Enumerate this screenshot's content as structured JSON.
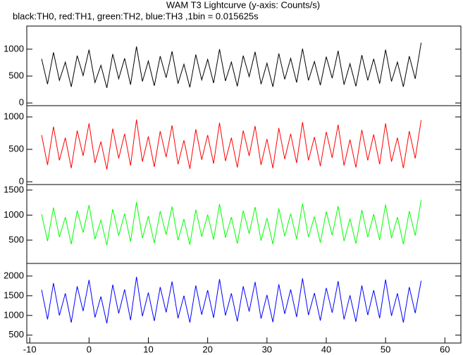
{
  "title": "WAM T3 Lightcurve (y-axis: Counts/s)",
  "subtitle": "black:TH0, red:TH1, green:TH2, blue:TH3 ,1bin = 0.015625s",
  "chart_data": [
    {
      "type": "line",
      "xlim": [
        -10.5,
        62.7
      ],
      "ylim": [
        -50,
        1430
      ],
      "yticks": [
        0,
        500,
        1000
      ],
      "x": [
        -8,
        -7,
        -6,
        -5,
        -4,
        -3,
        -2,
        -1,
        0,
        1,
        2,
        3,
        4,
        5,
        6,
        7,
        8,
        9,
        10,
        11,
        12,
        13,
        14,
        15,
        16,
        17,
        18,
        19,
        20,
        21,
        22,
        23,
        24,
        25,
        26,
        27,
        28,
        29,
        30,
        31,
        32,
        33,
        34,
        35,
        36,
        37,
        38,
        39,
        40,
        41,
        42,
        43,
        44,
        45,
        46,
        47,
        48,
        49,
        50,
        51,
        52,
        53,
        54,
        55,
        56
      ],
      "series": [
        {
          "name": "TH0",
          "color": "#000000",
          "values": [
            820,
            350,
            940,
            420,
            760,
            300,
            880,
            510,
            990,
            380,
            700,
            280,
            910,
            450,
            830,
            340,
            1050,
            400,
            780,
            320,
            870,
            470,
            960,
            360,
            720,
            290,
            900,
            430,
            810,
            370,
            1000,
            410,
            760,
            310,
            880,
            490,
            950,
            350,
            740,
            300,
            920,
            440,
            830,
            380,
            1010,
            420,
            770,
            330,
            860,
            460,
            970,
            340,
            730,
            310,
            890,
            420,
            820,
            360,
            990,
            400,
            760,
            300,
            870,
            450,
            1120
          ]
        }
      ]
    },
    {
      "type": "line",
      "xlim": [
        -10.5,
        62.7
      ],
      "ylim": [
        -43,
        1174
      ],
      "yticks": [
        0,
        500,
        1000
      ],
      "x": [
        -8,
        -7,
        -6,
        -5,
        -4,
        -3,
        -2,
        -1,
        0,
        1,
        2,
        3,
        4,
        5,
        6,
        7,
        8,
        9,
        10,
        11,
        12,
        13,
        14,
        15,
        16,
        17,
        18,
        19,
        20,
        21,
        22,
        23,
        24,
        25,
        26,
        27,
        28,
        29,
        30,
        31,
        32,
        33,
        34,
        35,
        36,
        37,
        38,
        39,
        40,
        41,
        42,
        43,
        44,
        45,
        46,
        47,
        48,
        49,
        50,
        51,
        52,
        53,
        54,
        55,
        56
      ],
      "series": [
        {
          "name": "TH1",
          "color": "#ff0000",
          "values": [
            720,
            260,
            850,
            330,
            680,
            210,
            790,
            400,
            900,
            290,
            620,
            190,
            820,
            360,
            740,
            250,
            960,
            310,
            700,
            230,
            780,
            380,
            870,
            270,
            640,
            200,
            810,
            340,
            720,
            280,
            910,
            320,
            680,
            220,
            790,
            400,
            860,
            260,
            660,
            210,
            830,
            350,
            740,
            290,
            920,
            330,
            690,
            240,
            770,
            370,
            880,
            250,
            650,
            220,
            800,
            330,
            730,
            270,
            900,
            310,
            680,
            210,
            780,
            360,
            950
          ]
        }
      ]
    },
    {
      "type": "line",
      "xlim": [
        -10.5,
        62.7
      ],
      "ylim": [
        35,
        1610
      ],
      "yticks": [
        500,
        1000,
        1500
      ],
      "x": [
        -8,
        -7,
        -6,
        -5,
        -4,
        -3,
        -2,
        -1,
        0,
        1,
        2,
        3,
        4,
        5,
        6,
        7,
        8,
        9,
        10,
        11,
        12,
        13,
        14,
        15,
        16,
        17,
        18,
        19,
        20,
        21,
        22,
        23,
        24,
        25,
        26,
        27,
        28,
        29,
        30,
        31,
        32,
        33,
        34,
        35,
        36,
        37,
        38,
        39,
        40,
        41,
        42,
        43,
        44,
        45,
        46,
        47,
        48,
        49,
        50,
        51,
        52,
        53,
        54,
        55,
        56
      ],
      "series": [
        {
          "name": "TH2",
          "color": "#00ff00",
          "values": [
            1020,
            480,
            1150,
            560,
            960,
            420,
            1090,
            650,
            1200,
            520,
            900,
            400,
            1120,
            590,
            1030,
            470,
            1260,
            540,
            980,
            440,
            1080,
            610,
            1170,
            500,
            920,
            410,
            1110,
            570,
            1010,
            510,
            1220,
            550,
            960,
            430,
            1090,
            630,
            1160,
            490,
            940,
            420,
            1130,
            580,
            1030,
            520,
            1230,
            560,
            970,
            450,
            1070,
            600,
            1180,
            480,
            930,
            430,
            1100,
            560,
            1020,
            500,
            1210,
            540,
            960,
            420,
            1080,
            590,
            1300
          ]
        }
      ]
    },
    {
      "type": "line",
      "xlim": [
        -10.5,
        62.7
      ],
      "ylim": [
        300,
        2320
      ],
      "yticks": [
        500,
        1000,
        1500,
        2000
      ],
      "xticks": [
        -10,
        0,
        10,
        20,
        30,
        40,
        50,
        60
      ],
      "x": [
        -8,
        -7,
        -6,
        -5,
        -4,
        -3,
        -2,
        -1,
        0,
        1,
        2,
        3,
        4,
        5,
        6,
        7,
        8,
        9,
        10,
        11,
        12,
        13,
        14,
        15,
        16,
        17,
        18,
        19,
        20,
        21,
        22,
        23,
        24,
        25,
        26,
        27,
        28,
        29,
        30,
        31,
        32,
        33,
        34,
        35,
        36,
        37,
        38,
        39,
        40,
        41,
        42,
        43,
        44,
        45,
        46,
        47,
        48,
        49,
        50,
        51,
        52,
        53,
        54,
        55,
        56
      ],
      "series": [
        {
          "name": "TH3",
          "color": "#0000ff",
          "values": [
            1650,
            900,
            1820,
            1000,
            1560,
            820,
            1740,
            1110,
            1900,
            950,
            1480,
            800,
            1780,
            1050,
            1660,
            880,
            1980,
            980,
            1580,
            860,
            1720,
            1080,
            1860,
            930,
            1500,
            820,
            1760,
            1020,
            1640,
            940,
            1920,
            1000,
            1560,
            850,
            1740,
            1100,
            1850,
            920,
            1520,
            830,
            1790,
            1040,
            1660,
            960,
            1940,
            1010,
            1570,
            870,
            1700,
            1070,
            1870,
            900,
            1510,
            840,
            1760,
            1010,
            1640,
            930,
            1910,
            990,
            1560,
            820,
            1720,
            1060,
            1880
          ]
        }
      ]
    }
  ]
}
